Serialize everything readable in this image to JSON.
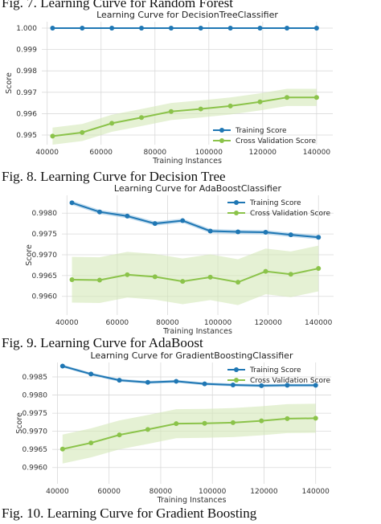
{
  "captions": {
    "fig7": "Fig. 7.  Learning Curve for Random Forest",
    "fig8": "Fig. 8.  Learning Curve for Decision Tree",
    "fig9": "Fig. 9. Learning Curve for AdaBoost",
    "fig10": "Fig. 10. Learning Curve for Gradient Boosting"
  },
  "colors": {
    "training": "#1f77b4",
    "cv": "#8bc34a",
    "training_band": "#8fbfe0",
    "cv_band": "#d4e8b8",
    "plot_bg": "#ffffff",
    "grid": "#d9d9d9"
  },
  "chart_data": [
    {
      "type": "line",
      "title": "Learning Curve for DecisionTreeClassifier",
      "xlabel": "Training Instances",
      "ylabel": "Score",
      "xlim": [
        38000,
        146000
      ],
      "ylim": [
        0.99455,
        1.0003
      ],
      "xticks": [
        40000,
        60000,
        80000,
        100000,
        120000,
        140000
      ],
      "yticks": [
        0.995,
        0.996,
        0.997,
        0.998,
        0.999,
        1.0
      ],
      "ytick_labels": [
        "0.995",
        "0.996",
        "0.997",
        "0.998",
        "0.999",
        "1.000"
      ],
      "grid": true,
      "legend_position": "lower-right",
      "x": [
        42000,
        53000,
        64000,
        75000,
        86000,
        97000,
        108000,
        119000,
        129000,
        140000
      ],
      "series": [
        {
          "name": "Training Score",
          "values": [
            1.0,
            1.0,
            1.0,
            1.0,
            1.0,
            1.0,
            1.0,
            1.0,
            1.0,
            1.0
          ],
          "band": 2e-05
        },
        {
          "name": "Cross Validation Score",
          "values": [
            0.99495,
            0.99512,
            0.99555,
            0.99582,
            0.9961,
            0.99622,
            0.99636,
            0.99655,
            0.99676,
            0.99676
          ],
          "band": 0.0004
        }
      ]
    },
    {
      "type": "line",
      "title": "Learning Curve for AdaBoostClassifier",
      "xlabel": "Training Instances",
      "ylabel": "Score",
      "xlim": [
        38000,
        146000
      ],
      "ylim": [
        0.99555,
        0.99843
      ],
      "xticks": [
        40000,
        60000,
        80000,
        100000,
        120000,
        140000
      ],
      "yticks": [
        0.996,
        0.9965,
        0.997,
        0.9975,
        0.998
      ],
      "ytick_labels": [
        "0.9960",
        "0.9965",
        "0.9970",
        "0.9975",
        "0.9980"
      ],
      "grid": true,
      "legend_position": "top-right",
      "x": [
        42000,
        53000,
        64000,
        75000,
        86000,
        97000,
        108000,
        119000,
        129000,
        140000
      ],
      "series": [
        {
          "name": "Training Score",
          "values": [
            0.99825,
            0.99803,
            0.99793,
            0.99775,
            0.99782,
            0.99757,
            0.99755,
            0.99754,
            0.99748,
            0.99742
          ],
          "band": 5e-05
        },
        {
          "name": "Cross Validation Score",
          "values": [
            0.9964,
            0.99639,
            0.99652,
            0.99647,
            0.99636,
            0.99646,
            0.99634,
            0.9966,
            0.99653,
            0.99667
          ],
          "band": 0.00055
        }
      ]
    },
    {
      "type": "line",
      "title": "Learning Curve for GradientBoostingClassifier",
      "xlabel": "Training Instances",
      "ylabel": "Score",
      "xlim": [
        38000,
        146000
      ],
      "ylim": [
        0.99555,
        0.9989
      ],
      "xticks": [
        40000,
        60000,
        80000,
        100000,
        120000,
        140000
      ],
      "yticks": [
        0.996,
        0.9965,
        0.997,
        0.9975,
        0.998,
        0.9985
      ],
      "ytick_labels": [
        "0.9960",
        "0.9965",
        "0.9970",
        "0.9975",
        "0.9980",
        "0.9985"
      ],
      "grid": true,
      "legend_position": "top-right",
      "x": [
        42000,
        53000,
        64000,
        75000,
        86000,
        97000,
        108000,
        119000,
        129000,
        140000
      ],
      "series": [
        {
          "name": "Training Score",
          "values": [
            0.9988,
            0.99858,
            0.99841,
            0.99835,
            0.99838,
            0.99831,
            0.99828,
            0.99826,
            0.99827,
            0.99827
          ],
          "band": 4e-05
        },
        {
          "name": "Cross Validation Score",
          "values": [
            0.99651,
            0.99668,
            0.9969,
            0.99705,
            0.99721,
            0.99722,
            0.99724,
            0.99729,
            0.99735,
            0.99736
          ],
          "band": 0.0004
        }
      ]
    }
  ]
}
